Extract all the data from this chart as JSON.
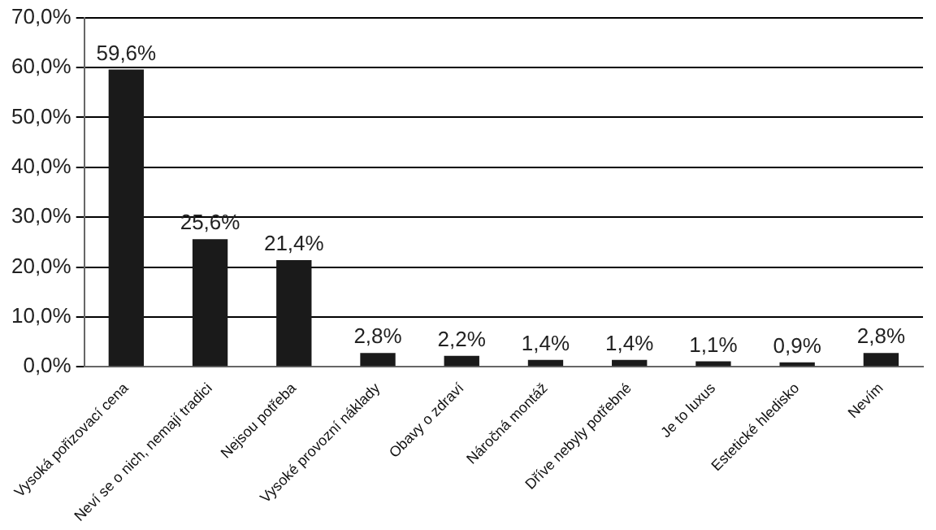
{
  "chart_data": {
    "type": "bar",
    "categories": [
      "Vysoká pořizovací cena",
      "Neví se o nich, nemají tradici",
      "Nejsou potřeba",
      "Vysoké provozní náklady",
      "Obavy o zdraví",
      "Náročná montáž",
      "Dříve nebyly potřebné",
      "Je to luxus",
      "Estetické hledisko",
      "Nevím"
    ],
    "values": [
      59.6,
      25.6,
      21.4,
      2.8,
      2.2,
      1.4,
      1.4,
      1.1,
      0.9,
      2.8
    ],
    "value_labels": [
      "59,6%",
      "25,6%",
      "21,4%",
      "2,8%",
      "2,2%",
      "1,4%",
      "1,4%",
      "1,1%",
      "0,9%",
      "2,8%"
    ],
    "color": "#1a1a1a",
    "ylim": [
      0,
      70
    ],
    "yticks": [
      {
        "value": 0,
        "label": "0,0%"
      },
      {
        "value": 10,
        "label": "10,0%"
      },
      {
        "value": 20,
        "label": "20,0%"
      },
      {
        "value": 30,
        "label": "30,0%"
      },
      {
        "value": 40,
        "label": "40,0%"
      },
      {
        "value": 50,
        "label": "50,0%"
      },
      {
        "value": 60,
        "label": "60,0%"
      },
      {
        "value": 70,
        "label": "70,0%"
      }
    ],
    "grid": "y"
  }
}
